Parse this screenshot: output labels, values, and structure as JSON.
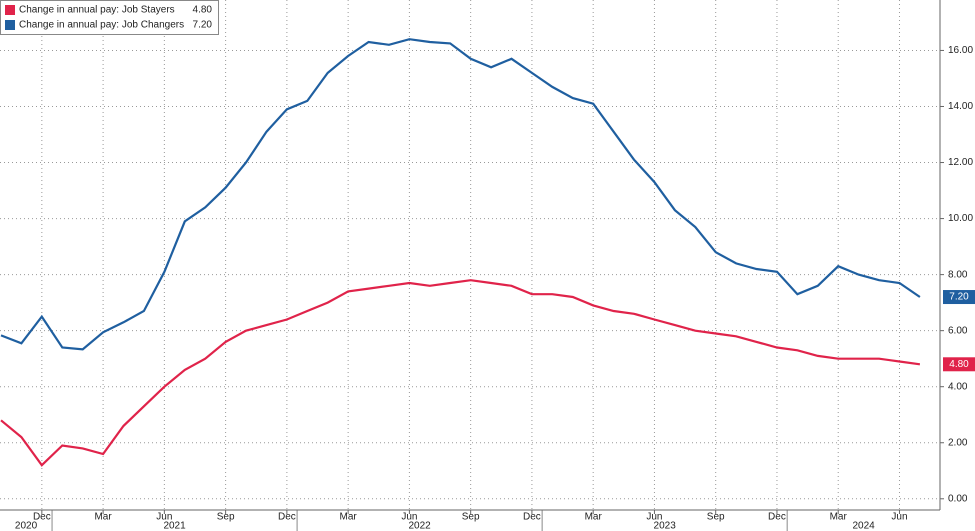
{
  "chart_data": {
    "type": "line",
    "x": [
      "2020-10",
      "2020-11",
      "2020-12",
      "2021-01",
      "2021-02",
      "2021-03",
      "2021-04",
      "2021-05",
      "2021-06",
      "2021-07",
      "2021-08",
      "2021-09",
      "2021-10",
      "2021-11",
      "2021-12",
      "2022-01",
      "2022-02",
      "2022-03",
      "2022-04",
      "2022-05",
      "2022-06",
      "2022-07",
      "2022-08",
      "2022-09",
      "2022-10",
      "2022-11",
      "2022-12",
      "2023-01",
      "2023-02",
      "2023-03",
      "2023-04",
      "2023-05",
      "2023-06",
      "2023-07",
      "2023-08",
      "2023-09",
      "2023-10",
      "2023-11",
      "2023-12",
      "2024-01",
      "2024-02",
      "2024-03",
      "2024-04",
      "2024-05",
      "2024-06",
      "2024-07"
    ],
    "series": [
      {
        "name": "Change in annual pay: Job Stayers",
        "color": "#e0234a",
        "last_value_label": "4.80",
        "values": [
          2.8,
          2.2,
          1.2,
          1.9,
          1.8,
          1.6,
          2.6,
          3.3,
          4.0,
          4.6,
          5.0,
          5.6,
          6.0,
          6.2,
          6.4,
          6.7,
          7.0,
          7.4,
          7.5,
          7.6,
          7.7,
          7.6,
          7.7,
          7.8,
          7.7,
          7.6,
          7.3,
          7.3,
          7.2,
          6.9,
          6.7,
          6.6,
          6.4,
          6.2,
          6.0,
          5.9,
          5.8,
          5.6,
          5.4,
          5.3,
          5.1,
          5.0,
          5.0,
          5.0,
          4.9,
          4.8
        ]
      },
      {
        "name": "Change in annual pay: Job Changers",
        "color": "#1f5fa0",
        "last_value_label": "7.20",
        "values": [
          5.83,
          5.55,
          6.5,
          5.4,
          5.33,
          5.94,
          6.3,
          6.7,
          8.1,
          9.9,
          10.4,
          11.1,
          12.0,
          13.1,
          13.9,
          14.2,
          15.2,
          15.8,
          16.3,
          16.2,
          16.4,
          16.3,
          16.25,
          15.7,
          15.4,
          15.7,
          15.2,
          14.7,
          14.3,
          14.1,
          13.1,
          12.1,
          11.3,
          10.3,
          9.7,
          8.8,
          8.4,
          8.2,
          8.1,
          7.3,
          7.6,
          8.3,
          8.0,
          7.8,
          7.7,
          7.2
        ]
      }
    ],
    "ylim": [
      -0.4,
      17.8
    ],
    "yticks": [
      {
        "value": 0,
        "label": "0.00"
      },
      {
        "value": 2,
        "label": "2.00"
      },
      {
        "value": 4,
        "label": "4.00"
      },
      {
        "value": 6,
        "label": "6.00"
      },
      {
        "value": 8,
        "label": "8.00"
      },
      {
        "value": 10,
        "label": "10.00"
      },
      {
        "value": 12,
        "label": "12.00"
      },
      {
        "value": 14,
        "label": "14.00"
      },
      {
        "value": 16,
        "label": "16.00"
      }
    ],
    "xticks": [
      {
        "value": "2020-12",
        "label": "Dec"
      },
      {
        "value": "2021-03",
        "label": "Mar"
      },
      {
        "value": "2021-06",
        "label": "Jun"
      },
      {
        "value": "2021-09",
        "label": "Sep"
      },
      {
        "value": "2021-12",
        "label": "Dec"
      },
      {
        "value": "2022-03",
        "label": "Mar"
      },
      {
        "value": "2022-06",
        "label": "Jun"
      },
      {
        "value": "2022-09",
        "label": "Sep"
      },
      {
        "value": "2022-12",
        "label": "Dec"
      },
      {
        "value": "2023-03",
        "label": "Mar"
      },
      {
        "value": "2023-06",
        "label": "Jun"
      },
      {
        "value": "2023-09",
        "label": "Sep"
      },
      {
        "value": "2023-12",
        "label": "Dec"
      },
      {
        "value": "2024-03",
        "label": "Mar"
      },
      {
        "value": "2024-06",
        "label": "Jun"
      }
    ],
    "years": [
      "2020",
      "2021",
      "2022",
      "2023",
      "2024"
    ],
    "grid": true,
    "legend": "top-left"
  }
}
